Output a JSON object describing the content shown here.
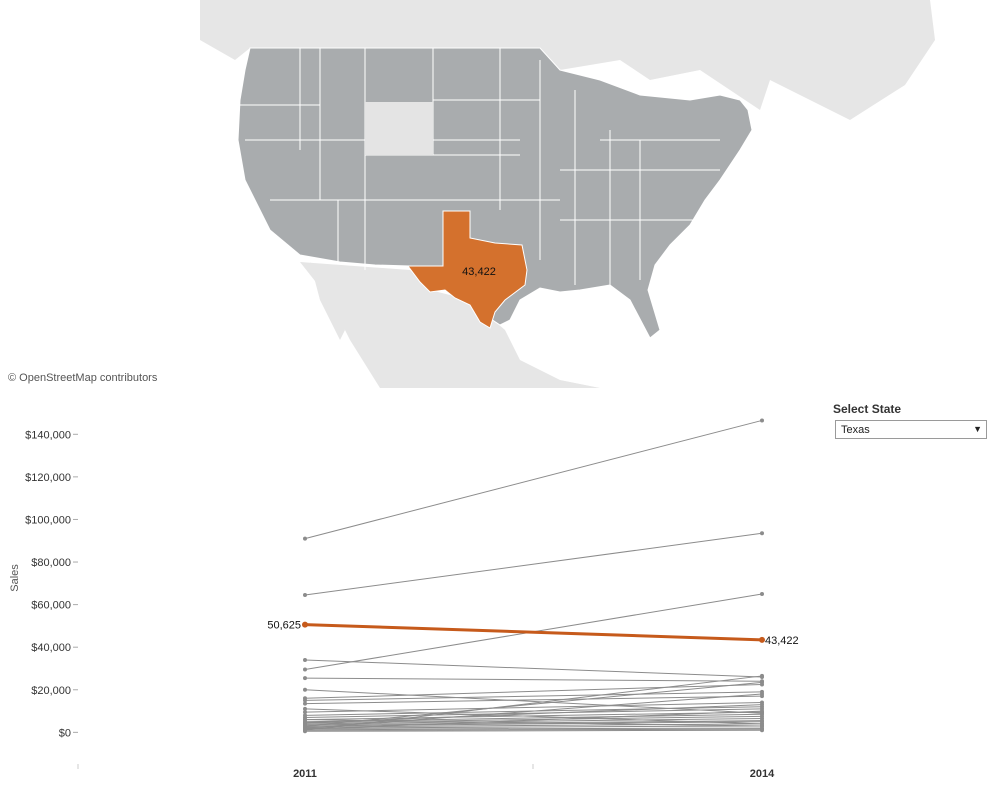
{
  "map": {
    "credit": "© OpenStreetMap contributors",
    "highlight_state": "Texas",
    "highlight_label": "43,422",
    "highlight_color": "#d4712d",
    "state_fill": "#a9acae",
    "background_land": "#e8e8e8"
  },
  "filter": {
    "title": "Select State",
    "selected": "Texas"
  },
  "chart_data": {
    "type": "line",
    "subtype": "slope",
    "x": [
      "2011",
      "2014"
    ],
    "ylabel": "Sales",
    "ylim": [
      -5000,
      150000
    ],
    "yticks": [
      "$0",
      "$20,000",
      "$40,000",
      "$60,000",
      "$80,000",
      "$100,000",
      "$120,000",
      "$140,000"
    ],
    "highlight": {
      "name": "Texas",
      "values": [
        50625,
        43422
      ],
      "labels": [
        "50,625",
        "43,422"
      ],
      "color": "#c65a1b"
    },
    "series_color": "#8c8c8c",
    "series": [
      {
        "values": [
          91000,
          146500
        ]
      },
      {
        "values": [
          64500,
          93500
        ]
      },
      {
        "values": [
          29500,
          65000
        ]
      },
      {
        "values": [
          34000,
          26000
        ]
      },
      {
        "values": [
          25500,
          24000
        ]
      },
      {
        "values": [
          16000,
          22500
        ]
      },
      {
        "values": [
          15000,
          19000
        ]
      },
      {
        "values": [
          13500,
          17000
        ]
      },
      {
        "values": [
          9500,
          14000
        ]
      },
      {
        "values": [
          8000,
          12000
        ]
      },
      {
        "values": [
          7000,
          11000
        ]
      },
      {
        "values": [
          6000,
          9500
        ]
      },
      {
        "values": [
          5000,
          8500
        ]
      },
      {
        "values": [
          4500,
          7500
        ]
      },
      {
        "values": [
          4000,
          6500
        ]
      },
      {
        "values": [
          3500,
          5500
        ]
      },
      {
        "values": [
          3000,
          5000
        ]
      },
      {
        "values": [
          2500,
          4000
        ]
      },
      {
        "values": [
          2000,
          3000
        ]
      },
      {
        "values": [
          1500,
          2000
        ]
      },
      {
        "values": [
          1000,
          1500
        ]
      },
      {
        "values": [
          500,
          1000
        ]
      },
      {
        "values": [
          11000,
          4000
        ]
      },
      {
        "values": [
          20000,
          9000
        ]
      },
      {
        "values": [
          1000,
          26500
        ]
      },
      {
        "values": [
          2000,
          18000
        ]
      },
      {
        "values": [
          3000,
          23500
        ]
      },
      {
        "values": [
          6000,
          3000
        ]
      },
      {
        "values": [
          4500,
          13000
        ]
      },
      {
        "values": [
          1500,
          10000
        ]
      }
    ]
  }
}
